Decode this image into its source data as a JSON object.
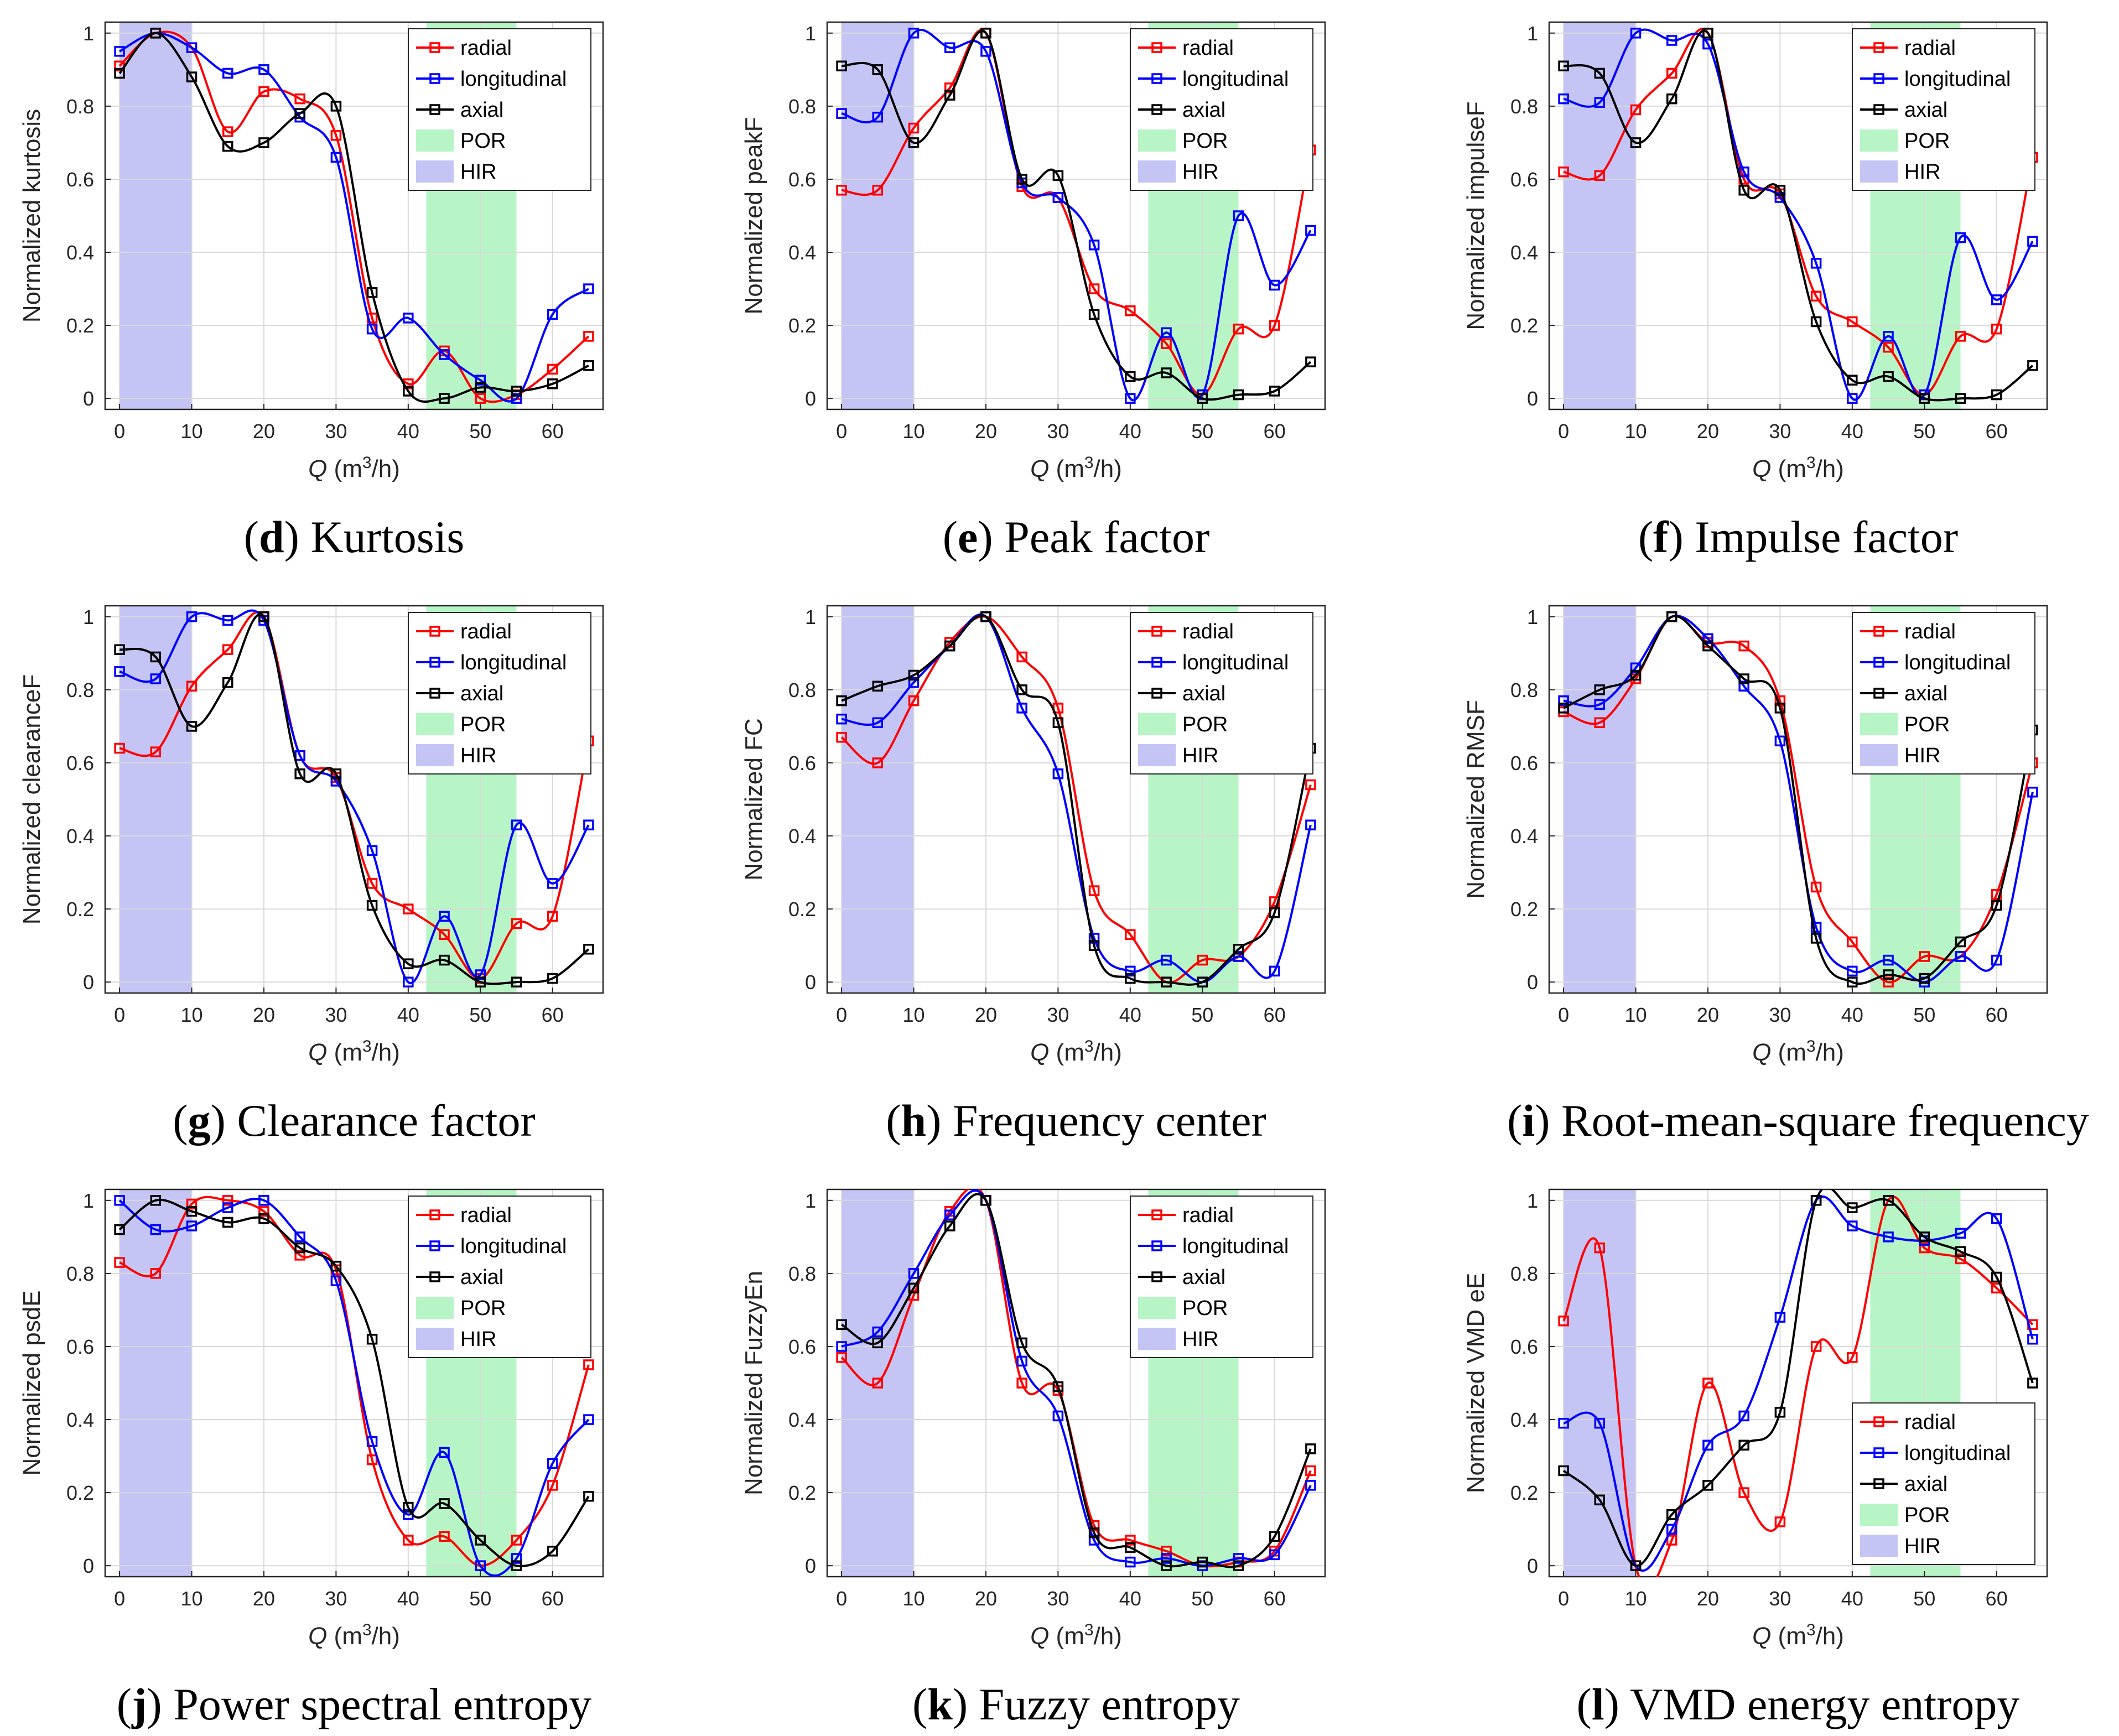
{
  "colors": {
    "radial": "#ff0000",
    "longitudinal": "#0000ff",
    "axial": "#000000",
    "POR": "#b8f5c6",
    "HIR": "#c4c4f5"
  },
  "legend_labels": [
    "radial",
    "longitudinal",
    "axial",
    "POR",
    "HIR"
  ],
  "x_axis_label": {
    "main": "Q",
    "unit_prefix": "(m",
    "exponent": "3",
    "unit_suffix": "/h)"
  },
  "chart_data": [
    {
      "type": "line",
      "id": "d",
      "title": "Kurtosis",
      "caption_letter": "d",
      "ylabel": "Normalized kurtosis",
      "x": [
        0,
        5,
        10,
        15,
        20,
        25,
        30,
        35,
        40,
        45,
        50,
        55,
        60,
        65
      ],
      "xlim": [
        -2,
        67
      ],
      "ylim": [
        -0.03,
        1.03
      ],
      "xticks": [
        0,
        10,
        20,
        30,
        40,
        50,
        60
      ],
      "yticks": [
        0,
        0.2,
        0.4,
        0.6,
        0.8,
        1
      ],
      "HIR": [
        0,
        10
      ],
      "POR": [
        42.5,
        55
      ],
      "legend_position": "top-right",
      "series": [
        {
          "name": "radial",
          "values": [
            0.91,
            1.0,
            0.96,
            0.73,
            0.84,
            0.82,
            0.72,
            0.22,
            0.04,
            0.13,
            0.0,
            0.01,
            0.08,
            0.17
          ]
        },
        {
          "name": "longitudinal",
          "values": [
            0.95,
            1.0,
            0.96,
            0.89,
            0.9,
            0.77,
            0.66,
            0.19,
            0.22,
            0.12,
            0.05,
            0.0,
            0.23,
            0.3
          ]
        },
        {
          "name": "axial",
          "values": [
            0.89,
            1.0,
            0.88,
            0.69,
            0.7,
            0.78,
            0.8,
            0.29,
            0.02,
            0.0,
            0.03,
            0.02,
            0.04,
            0.09
          ]
        }
      ]
    },
    {
      "type": "line",
      "id": "e",
      "title": "Peak factor",
      "caption_letter": "e",
      "ylabel": "Normalized peakF",
      "x": [
        0,
        5,
        10,
        15,
        20,
        25,
        30,
        35,
        40,
        45,
        50,
        55,
        60,
        65
      ],
      "xlim": [
        -2,
        67
      ],
      "ylim": [
        -0.03,
        1.03
      ],
      "xticks": [
        0,
        10,
        20,
        30,
        40,
        50,
        60
      ],
      "yticks": [
        0,
        0.2,
        0.4,
        0.6,
        0.8,
        1
      ],
      "HIR": [
        0,
        10
      ],
      "POR": [
        42.5,
        55
      ],
      "legend_position": "top-right",
      "series": [
        {
          "name": "radial",
          "values": [
            0.57,
            0.57,
            0.74,
            0.85,
            1.0,
            0.58,
            0.55,
            0.3,
            0.24,
            0.15,
            0.01,
            0.19,
            0.2,
            0.68
          ]
        },
        {
          "name": "longitudinal",
          "values": [
            0.78,
            0.77,
            1.0,
            0.96,
            0.95,
            0.59,
            0.55,
            0.42,
            0.0,
            0.18,
            0.01,
            0.5,
            0.31,
            0.46
          ]
        },
        {
          "name": "axial",
          "values": [
            0.91,
            0.9,
            0.7,
            0.83,
            1.0,
            0.6,
            0.61,
            0.23,
            0.06,
            0.07,
            0.0,
            0.01,
            0.02,
            0.1
          ]
        }
      ]
    },
    {
      "type": "line",
      "id": "f",
      "title": "Impulse factor",
      "caption_letter": "f",
      "ylabel": "Normalized impulseF",
      "x": [
        0,
        5,
        10,
        15,
        20,
        25,
        30,
        35,
        40,
        45,
        50,
        55,
        60,
        65
      ],
      "xlim": [
        -2,
        67
      ],
      "ylim": [
        -0.03,
        1.03
      ],
      "xticks": [
        0,
        10,
        20,
        30,
        40,
        50,
        60
      ],
      "yticks": [
        0,
        0.2,
        0.4,
        0.6,
        0.8,
        1
      ],
      "HIR": [
        0,
        10
      ],
      "POR": [
        42.5,
        55
      ],
      "legend_position": "top-right",
      "series": [
        {
          "name": "radial",
          "values": [
            0.62,
            0.61,
            0.79,
            0.89,
            1.0,
            0.6,
            0.56,
            0.28,
            0.21,
            0.14,
            0.01,
            0.17,
            0.19,
            0.66
          ]
        },
        {
          "name": "longitudinal",
          "values": [
            0.82,
            0.81,
            1.0,
            0.98,
            0.97,
            0.62,
            0.55,
            0.37,
            0.0,
            0.17,
            0.01,
            0.44,
            0.27,
            0.43
          ]
        },
        {
          "name": "axial",
          "values": [
            0.91,
            0.89,
            0.7,
            0.82,
            1.0,
            0.57,
            0.57,
            0.21,
            0.05,
            0.06,
            0.0,
            0.0,
            0.01,
            0.09
          ]
        }
      ]
    },
    {
      "type": "line",
      "id": "g",
      "title": "Clearance factor",
      "caption_letter": "g",
      "ylabel": "Normalized clearanceF",
      "x": [
        0,
        5,
        10,
        15,
        20,
        25,
        30,
        35,
        40,
        45,
        50,
        55,
        60,
        65
      ],
      "xlim": [
        -2,
        67
      ],
      "ylim": [
        -0.03,
        1.03
      ],
      "xticks": [
        0,
        10,
        20,
        30,
        40,
        50,
        60
      ],
      "yticks": [
        0,
        0.2,
        0.4,
        0.6,
        0.8,
        1
      ],
      "HIR": [
        0,
        10
      ],
      "POR": [
        42.5,
        55
      ],
      "legend_position": "top-right",
      "series": [
        {
          "name": "radial",
          "values": [
            0.64,
            0.63,
            0.81,
            0.91,
            1.0,
            0.62,
            0.56,
            0.27,
            0.2,
            0.13,
            0.01,
            0.16,
            0.18,
            0.66
          ]
        },
        {
          "name": "longitudinal",
          "values": [
            0.85,
            0.83,
            1.0,
            0.99,
            0.99,
            0.62,
            0.55,
            0.36,
            0.0,
            0.18,
            0.02,
            0.43,
            0.27,
            0.43
          ]
        },
        {
          "name": "axial",
          "values": [
            0.91,
            0.89,
            0.7,
            0.82,
            1.0,
            0.57,
            0.57,
            0.21,
            0.05,
            0.06,
            0.0,
            0.0,
            0.01,
            0.09
          ]
        }
      ]
    },
    {
      "type": "line",
      "id": "h",
      "title": "Frequency center",
      "caption_letter": "h",
      "ylabel": "Normalized FC",
      "x": [
        0,
        5,
        10,
        15,
        20,
        25,
        30,
        35,
        40,
        45,
        50,
        55,
        60,
        65
      ],
      "xlim": [
        -2,
        67
      ],
      "ylim": [
        -0.03,
        1.03
      ],
      "xticks": [
        0,
        10,
        20,
        30,
        40,
        50,
        60
      ],
      "yticks": [
        0,
        0.2,
        0.4,
        0.6,
        0.8,
        1
      ],
      "HIR": [
        0,
        10
      ],
      "POR": [
        42.5,
        55
      ],
      "legend_position": "top-right",
      "series": [
        {
          "name": "radial",
          "values": [
            0.67,
            0.6,
            0.77,
            0.93,
            1.0,
            0.89,
            0.75,
            0.25,
            0.13,
            0.0,
            0.06,
            0.07,
            0.22,
            0.54
          ]
        },
        {
          "name": "longitudinal",
          "values": [
            0.72,
            0.71,
            0.82,
            0.92,
            1.0,
            0.75,
            0.57,
            0.12,
            0.03,
            0.06,
            0.0,
            0.07,
            0.03,
            0.43
          ]
        },
        {
          "name": "axial",
          "values": [
            0.77,
            0.81,
            0.84,
            0.92,
            1.0,
            0.8,
            0.71,
            0.1,
            0.01,
            0.0,
            0.0,
            0.09,
            0.19,
            0.64
          ]
        }
      ]
    },
    {
      "type": "line",
      "id": "i",
      "title": "Root-mean-square frequency",
      "caption_letter": "i",
      "ylabel": "Normalized RMSF",
      "x": [
        0,
        5,
        10,
        15,
        20,
        25,
        30,
        35,
        40,
        45,
        50,
        55,
        60,
        65
      ],
      "xlim": [
        -2,
        67
      ],
      "ylim": [
        -0.03,
        1.03
      ],
      "xticks": [
        0,
        10,
        20,
        30,
        40,
        50,
        60
      ],
      "yticks": [
        0,
        0.2,
        0.4,
        0.6,
        0.8,
        1
      ],
      "HIR": [
        0,
        10
      ],
      "POR": [
        42.5,
        55
      ],
      "legend_position": "top-right",
      "series": [
        {
          "name": "radial",
          "values": [
            0.74,
            0.71,
            0.83,
            1.0,
            0.93,
            0.92,
            0.77,
            0.26,
            0.11,
            0.0,
            0.07,
            0.07,
            0.24,
            0.6
          ]
        },
        {
          "name": "longitudinal",
          "values": [
            0.77,
            0.76,
            0.86,
            1.0,
            0.94,
            0.81,
            0.66,
            0.15,
            0.03,
            0.06,
            0.0,
            0.07,
            0.06,
            0.52
          ]
        },
        {
          "name": "axial",
          "values": [
            0.75,
            0.8,
            0.84,
            1.0,
            0.92,
            0.83,
            0.75,
            0.12,
            0.0,
            0.02,
            0.01,
            0.11,
            0.21,
            0.69
          ]
        }
      ]
    },
    {
      "type": "line",
      "id": "j",
      "title": "Power spectral entropy",
      "caption_letter": "j",
      "ylabel": "Normalized psdE",
      "x": [
        0,
        5,
        10,
        15,
        20,
        25,
        30,
        35,
        40,
        45,
        50,
        55,
        60,
        65
      ],
      "xlim": [
        -2,
        67
      ],
      "ylim": [
        -0.03,
        1.03
      ],
      "xticks": [
        0,
        10,
        20,
        30,
        40,
        50,
        60
      ],
      "yticks": [
        0,
        0.2,
        0.4,
        0.6,
        0.8,
        1
      ],
      "HIR": [
        0,
        10
      ],
      "POR": [
        42.5,
        55
      ],
      "legend_position": "top-right",
      "series": [
        {
          "name": "radial",
          "values": [
            0.83,
            0.8,
            0.99,
            1.0,
            0.97,
            0.85,
            0.81,
            0.29,
            0.07,
            0.08,
            0.0,
            0.07,
            0.22,
            0.55
          ]
        },
        {
          "name": "longitudinal",
          "values": [
            1.0,
            0.92,
            0.93,
            0.98,
            1.0,
            0.9,
            0.78,
            0.34,
            0.14,
            0.31,
            0.0,
            0.02,
            0.28,
            0.4
          ]
        },
        {
          "name": "axial",
          "values": [
            0.92,
            1.0,
            0.97,
            0.94,
            0.95,
            0.87,
            0.82,
            0.62,
            0.16,
            0.17,
            0.07,
            0.0,
            0.04,
            0.19
          ]
        }
      ]
    },
    {
      "type": "line",
      "id": "k",
      "title": "Fuzzy entropy",
      "caption_letter": "k",
      "ylabel": "Normalized FuzzyEn",
      "x": [
        0,
        5,
        10,
        15,
        20,
        25,
        30,
        35,
        40,
        45,
        50,
        55,
        60,
        65
      ],
      "xlim": [
        -2,
        67
      ],
      "ylim": [
        -0.03,
        1.03
      ],
      "xticks": [
        0,
        10,
        20,
        30,
        40,
        50,
        60
      ],
      "yticks": [
        0,
        0.2,
        0.4,
        0.6,
        0.8,
        1
      ],
      "HIR": [
        0,
        10
      ],
      "POR": [
        42.5,
        55
      ],
      "legend_position": "top-right",
      "series": [
        {
          "name": "radial",
          "values": [
            0.57,
            0.5,
            0.74,
            0.97,
            1.0,
            0.5,
            0.48,
            0.11,
            0.07,
            0.04,
            0.0,
            0.01,
            0.04,
            0.26
          ]
        },
        {
          "name": "longitudinal",
          "values": [
            0.6,
            0.64,
            0.8,
            0.96,
            1.0,
            0.56,
            0.41,
            0.07,
            0.01,
            0.02,
            0.0,
            0.02,
            0.03,
            0.22
          ]
        },
        {
          "name": "axial",
          "values": [
            0.66,
            0.61,
            0.76,
            0.93,
            1.0,
            0.61,
            0.49,
            0.09,
            0.05,
            0.0,
            0.01,
            0.0,
            0.08,
            0.32
          ]
        }
      ]
    },
    {
      "type": "line",
      "id": "l",
      "title": "VMD energy entropy",
      "caption_letter": "l",
      "ylabel": "Normalized VMD eE",
      "x": [
        0,
        5,
        10,
        15,
        20,
        25,
        30,
        35,
        40,
        45,
        50,
        55,
        60,
        65
      ],
      "xlim": [
        -2,
        67
      ],
      "ylim": [
        -0.03,
        1.03
      ],
      "xticks": [
        0,
        10,
        20,
        30,
        40,
        50,
        60
      ],
      "yticks": [
        0,
        0.2,
        0.4,
        0.6,
        0.8,
        1
      ],
      "HIR": [
        0,
        10
      ],
      "POR": [
        42.5,
        55
      ],
      "legend_position": "bottom-right",
      "series": [
        {
          "name": "radial",
          "values": [
            0.67,
            0.87,
            0.0,
            0.07,
            0.5,
            0.2,
            0.12,
            0.6,
            0.57,
            1.0,
            0.87,
            0.84,
            0.76,
            0.66
          ]
        },
        {
          "name": "longitudinal",
          "values": [
            0.39,
            0.39,
            0.0,
            0.1,
            0.33,
            0.41,
            0.68,
            1.0,
            0.93,
            0.9,
            0.89,
            0.91,
            0.95,
            0.62
          ]
        },
        {
          "name": "axial",
          "values": [
            0.26,
            0.18,
            0.0,
            0.14,
            0.22,
            0.33,
            0.42,
            1.0,
            0.98,
            1.0,
            0.9,
            0.86,
            0.79,
            0.5
          ]
        }
      ]
    }
  ]
}
